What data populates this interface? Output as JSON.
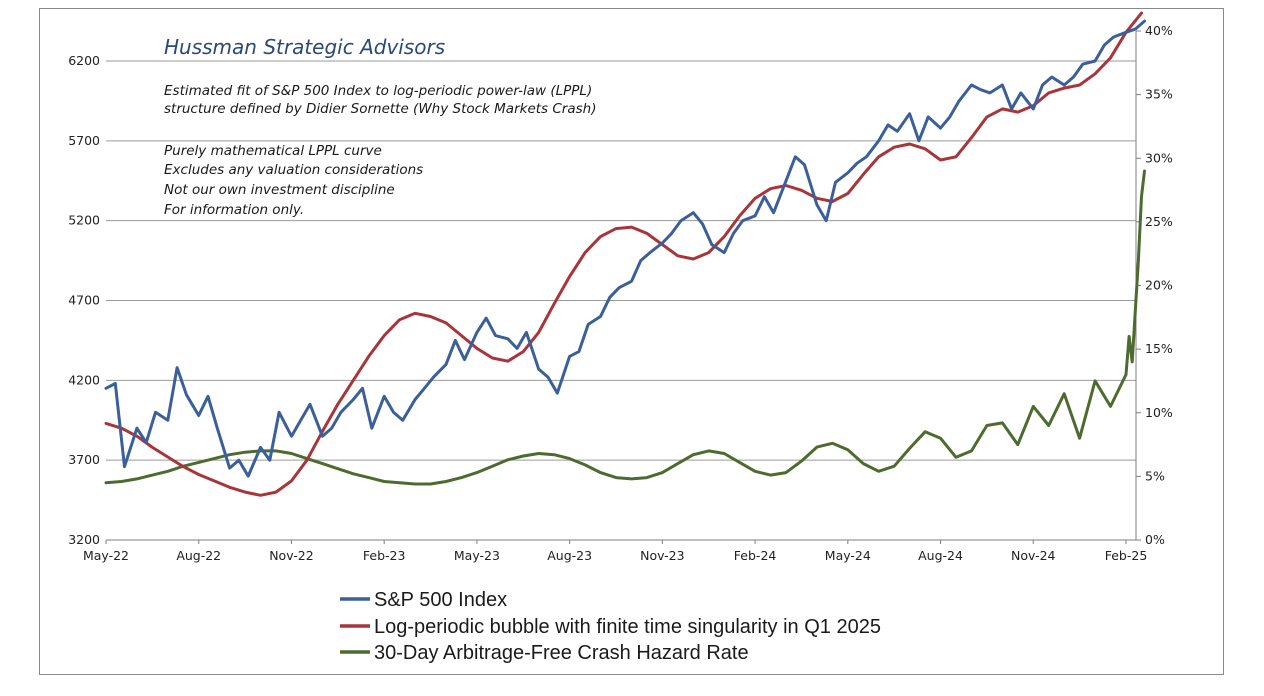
{
  "chart_data": {
    "type": "line",
    "title": "Hussman Strategic Advisors",
    "annotations": {
      "subtitle_lines": [
        "Estimated fit of S&P 500 Index to log-periodic power-law (LPPL)",
        "structure defined by Didier Sornette (Why Stock Markets Crash)"
      ],
      "note_lines": [
        "Purely mathematical LPPL curve",
        "Excludes any valuation considerations",
        "Not our own investment discipline",
        "For information only."
      ]
    },
    "x_ticks": [
      "May-22",
      "Aug-22",
      "Nov-22",
      "Feb-23",
      "May-23",
      "Aug-23",
      "Nov-23",
      "Feb-24",
      "May-24",
      "Aug-24",
      "Nov-24",
      "Feb-25"
    ],
    "y_left": {
      "ticks": [
        "3200",
        "3700",
        "4200",
        "4700",
        "5200",
        "5700",
        "6200"
      ],
      "min": 3200,
      "max": 6200
    },
    "y_right": {
      "ticks": [
        "0%",
        "5%",
        "10%",
        "15%",
        "20%",
        "25%",
        "30%",
        "35%",
        "40%"
      ],
      "min": 0,
      "max": 40
    },
    "grid": "horizontal",
    "legend_position": "bottom",
    "series": [
      {
        "name": "S&P 500 Index",
        "axis": "left",
        "color": "#3a5f9a",
        "x": [
          0,
          0.3,
          0.6,
          1.0,
          1.3,
          1.6,
          2.0,
          2.3,
          2.6,
          3.0,
          3.3,
          3.6,
          4.0,
          4.3,
          4.6,
          5.0,
          5.3,
          5.6,
          6.0,
          6.3,
          6.6,
          7.0,
          7.3,
          7.6,
          8.0,
          8.3,
          8.6,
          9.0,
          9.3,
          9.6,
          10.0,
          10.3,
          10.6,
          11.0,
          11.3,
          11.6,
          12.0,
          12.3,
          12.6,
          13.0,
          13.3,
          13.6,
          14.0,
          14.3,
          14.6,
          15.0,
          15.3,
          15.6,
          16.0,
          16.3,
          16.6,
          17.0,
          17.3,
          17.6,
          18.0,
          18.3,
          18.6,
          19.0,
          19.3,
          19.6,
          20.0,
          20.3,
          20.6,
          21.0,
          21.3,
          21.6,
          22.0,
          22.3,
          22.6,
          23.0,
          23.3,
          23.6,
          24.0,
          24.3,
          24.6,
          25.0,
          25.3,
          25.6,
          26.0,
          26.3,
          26.6,
          27.0,
          27.3,
          27.6,
          28.0,
          28.3,
          28.6,
          29.0,
          29.3,
          29.6,
          30.0,
          30.3,
          30.6,
          31.0,
          31.3,
          31.6,
          32.0,
          32.3,
          32.6,
          33.0,
          33.3,
          33.6
        ],
        "values": [
          4150,
          4180,
          3660,
          3900,
          3810,
          4000,
          3950,
          4280,
          4110,
          3980,
          4100,
          3900,
          3650,
          3700,
          3600,
          3780,
          3700,
          4000,
          3850,
          3950,
          4050,
          3850,
          3900,
          4000,
          4080,
          4150,
          3900,
          4100,
          4000,
          3950,
          4080,
          4150,
          4220,
          4300,
          4450,
          4330,
          4500,
          4590,
          4480,
          4460,
          4400,
          4500,
          4270,
          4220,
          4120,
          4350,
          4380,
          4550,
          4600,
          4720,
          4780,
          4820,
          4950,
          5000,
          5060,
          5120,
          5200,
          5250,
          5180,
          5050,
          5000,
          5120,
          5200,
          5230,
          5350,
          5250,
          5450,
          5600,
          5550,
          5300,
          5200,
          5440,
          5500,
          5560,
          5600,
          5700,
          5800,
          5760,
          5870,
          5700,
          5850,
          5780,
          5850,
          5950,
          6050,
          6020,
          6000,
          6050,
          5900,
          6000,
          5900,
          6050,
          6100,
          6050,
          6100,
          6180,
          6200,
          6300,
          6350,
          6380,
          6400,
          6450
        ]
      },
      {
        "name": "Log-periodic bubble with finite time singularity in Q1 2025",
        "axis": "left",
        "color": "#a8353a",
        "x": [
          0,
          0.5,
          1.0,
          1.5,
          2.0,
          2.5,
          3.0,
          3.5,
          4.0,
          4.5,
          5.0,
          5.5,
          6.0,
          6.5,
          7.0,
          7.5,
          8.0,
          8.5,
          9.0,
          9.5,
          10.0,
          10.5,
          11.0,
          11.5,
          12.0,
          12.5,
          13.0,
          13.5,
          14.0,
          14.5,
          15.0,
          15.5,
          16.0,
          16.5,
          17.0,
          17.5,
          18.0,
          18.5,
          19.0,
          19.5,
          20.0,
          20.5,
          21.0,
          21.5,
          22.0,
          22.5,
          23.0,
          23.5,
          24.0,
          24.5,
          25.0,
          25.5,
          26.0,
          26.5,
          27.0,
          27.5,
          28.0,
          28.5,
          29.0,
          29.5,
          30.0,
          30.5,
          31.0,
          31.5,
          32.0,
          32.5,
          33.0,
          33.5
        ],
        "values": [
          3930,
          3900,
          3850,
          3780,
          3720,
          3660,
          3610,
          3570,
          3530,
          3500,
          3480,
          3500,
          3570,
          3700,
          3880,
          4050,
          4200,
          4350,
          4480,
          4580,
          4620,
          4600,
          4560,
          4480,
          4400,
          4340,
          4320,
          4380,
          4500,
          4680,
          4850,
          5000,
          5100,
          5150,
          5160,
          5120,
          5050,
          4980,
          4960,
          5000,
          5100,
          5230,
          5340,
          5400,
          5420,
          5390,
          5340,
          5320,
          5370,
          5490,
          5600,
          5660,
          5680,
          5650,
          5580,
          5600,
          5720,
          5850,
          5900,
          5880,
          5920,
          6000,
          6030,
          6050,
          6120,
          6220,
          6380,
          6500
        ]
      },
      {
        "name": "30-Day Arbitrage-Free Crash Hazard Rate",
        "axis": "right",
        "color": "#4d6b2e",
        "x": [
          0,
          0.5,
          1.0,
          1.5,
          2.0,
          2.5,
          3.0,
          3.5,
          4.0,
          4.5,
          5.0,
          5.5,
          6.0,
          6.5,
          7.0,
          7.5,
          8.0,
          8.5,
          9.0,
          9.5,
          10.0,
          10.5,
          11.0,
          11.5,
          12.0,
          12.5,
          13.0,
          13.5,
          14.0,
          14.5,
          15.0,
          15.5,
          16.0,
          16.5,
          17.0,
          17.5,
          18.0,
          18.5,
          19.0,
          19.5,
          20.0,
          20.5,
          21.0,
          21.5,
          22.0,
          22.5,
          23.0,
          23.5,
          24.0,
          24.5,
          25.0,
          25.5,
          26.0,
          26.5,
          27.0,
          27.5,
          28.0,
          28.5,
          29.0,
          29.5,
          30.0,
          30.5,
          31.0,
          31.5,
          32.0,
          32.5,
          33.0,
          33.1,
          33.2,
          33.3,
          33.4,
          33.5,
          33.6
        ],
        "values": [
          4.5,
          4.6,
          4.8,
          5.1,
          5.4,
          5.8,
          6.1,
          6.4,
          6.7,
          6.9,
          7.0,
          7.0,
          6.8,
          6.4,
          6.0,
          5.6,
          5.2,
          4.9,
          4.6,
          4.5,
          4.4,
          4.4,
          4.6,
          4.9,
          5.3,
          5.8,
          6.3,
          6.6,
          6.8,
          6.7,
          6.4,
          5.9,
          5.3,
          4.9,
          4.8,
          4.9,
          5.3,
          6.0,
          6.7,
          7.0,
          6.8,
          6.1,
          5.4,
          5.1,
          5.3,
          6.2,
          7.3,
          7.6,
          7.1,
          6.0,
          5.4,
          5.8,
          7.2,
          8.5,
          8.0,
          6.5,
          7.0,
          9.0,
          9.2,
          7.5,
          10.5,
          9.0,
          11.5,
          8.0,
          12.5,
          10.5,
          13.0,
          16.0,
          14.0,
          18.0,
          22.0,
          27.0,
          29.0
        ]
      }
    ]
  }
}
